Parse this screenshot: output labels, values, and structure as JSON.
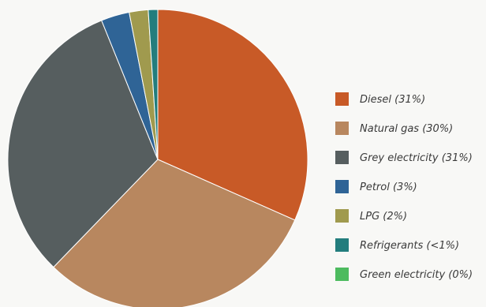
{
  "chart_data": {
    "type": "pie",
    "slices": [
      {
        "label": "Diesel (31%)",
        "value": 31,
        "color": "#c85a27"
      },
      {
        "label": "Natural gas (30%)",
        "value": 30,
        "color": "#b8875f"
      },
      {
        "label": "Grey electricity (31%)",
        "value": 31,
        "color": "#565e5f"
      },
      {
        "label": "Petrol (3%)",
        "value": 3,
        "color": "#2f6496"
      },
      {
        "label": "LPG (2%)",
        "value": 2,
        "color": "#a09a4e"
      },
      {
        "label": "Refrigerants (<1%)",
        "value": 1,
        "color": "#237d7d"
      },
      {
        "label": "Green electricity (0%)",
        "value": 0,
        "color": "#4dbb5f"
      }
    ],
    "start_angle_deg": 0,
    "direction": "clockwise",
    "legend_position": "right"
  }
}
